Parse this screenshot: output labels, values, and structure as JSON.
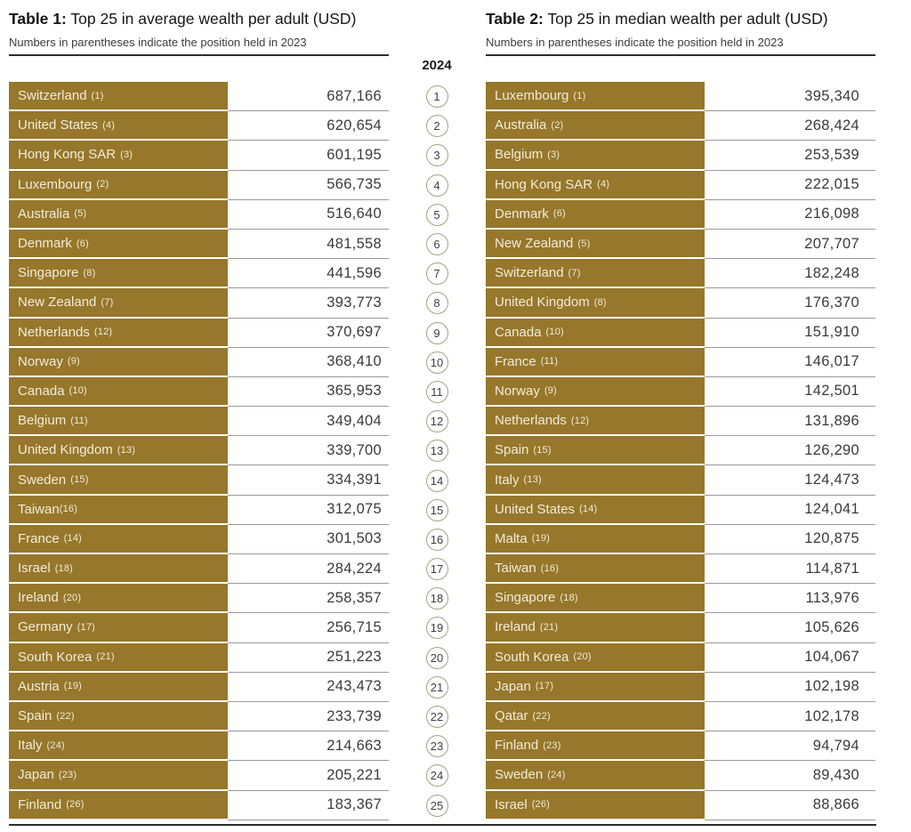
{
  "year_header": "2024",
  "colors": {
    "bar_gold": "#96772b",
    "bar_text": "#f2ecd9",
    "value_text": "#3a3a3a",
    "row_separator": "#9a9a9a",
    "rule_dark": "#2e2e2e",
    "circle_border": "#a9a080"
  },
  "table1": {
    "title_bold": "Table 1:",
    "title_rest": " Top 25 in average wealth per adult (USD)",
    "subtitle": "Numbers in parentheses indicate the position held in 2023",
    "rows": [
      {
        "rank": 1,
        "country": "Switzerland",
        "prev": "(1)",
        "value": "687,166"
      },
      {
        "rank": 2,
        "country": "United States",
        "prev": "(4)",
        "value": "620,654"
      },
      {
        "rank": 3,
        "country": "Hong Kong SAR",
        "prev": "(3)",
        "value": "601,195"
      },
      {
        "rank": 4,
        "country": "Luxembourg",
        "prev": "(2)",
        "value": "566,735"
      },
      {
        "rank": 5,
        "country": "Australia",
        "prev": "(5)",
        "value": "516,640"
      },
      {
        "rank": 6,
        "country": "Denmark",
        "prev": "(6)",
        "value": "481,558"
      },
      {
        "rank": 7,
        "country": "Singapore",
        "prev": "(8)",
        "value": "441,596"
      },
      {
        "rank": 8,
        "country": "New Zealand",
        "prev": "(7)",
        "value": "393,773"
      },
      {
        "rank": 9,
        "country": "Netherlands",
        "prev": "(12)",
        "value": "370,697"
      },
      {
        "rank": 10,
        "country": "Norway",
        "prev": "(9)",
        "value": "368,410"
      },
      {
        "rank": 11,
        "country": "Canada",
        "prev": "(10)",
        "value": "365,953"
      },
      {
        "rank": 12,
        "country": "Belgium",
        "prev": "(11)",
        "value": "349,404"
      },
      {
        "rank": 13,
        "country": "United Kingdom",
        "prev": "(13)",
        "value": "339,700"
      },
      {
        "rank": 14,
        "country": "Sweden",
        "prev": "(15)",
        "value": "334,391"
      },
      {
        "rank": 15,
        "country": "Taiwan",
        "prev": "(16)",
        "value": "312,075",
        "nospace": true
      },
      {
        "rank": 16,
        "country": "France",
        "prev": "(14)",
        "value": "301,503"
      },
      {
        "rank": 17,
        "country": "Israel",
        "prev": "(18)",
        "value": "284,224"
      },
      {
        "rank": 18,
        "country": "Ireland",
        "prev": "(20)",
        "value": "258,357"
      },
      {
        "rank": 19,
        "country": "Germany",
        "prev": "(17)",
        "value": "256,715"
      },
      {
        "rank": 20,
        "country": "South Korea",
        "prev": "(21)",
        "value": "251,223"
      },
      {
        "rank": 21,
        "country": "Austria",
        "prev": "(19)",
        "value": "243,473"
      },
      {
        "rank": 22,
        "country": "Spain",
        "prev": "(22)",
        "value": "233,739"
      },
      {
        "rank": 23,
        "country": "Italy",
        "prev": "(24)",
        "value": "214,663"
      },
      {
        "rank": 24,
        "country": "Japan",
        "prev": "(23)",
        "value": "205,221"
      },
      {
        "rank": 25,
        "country": "Finland",
        "prev": "(26)",
        "value": "183,367"
      }
    ]
  },
  "table2": {
    "title_bold": "Table 2:",
    "title_rest": " Top 25 in median wealth per adult (USD)",
    "subtitle": "Numbers in parentheses indicate the position held in 2023",
    "rows": [
      {
        "rank": 1,
        "country": "Luxembourg",
        "prev": "(1)",
        "value": "395,340"
      },
      {
        "rank": 2,
        "country": "Australia",
        "prev": "(2)",
        "value": "268,424"
      },
      {
        "rank": 3,
        "country": "Belgium",
        "prev": "(3)",
        "value": "253,539"
      },
      {
        "rank": 4,
        "country": "Hong Kong SAR",
        "prev": "(4)",
        "value": "222,015"
      },
      {
        "rank": 5,
        "country": "Denmark",
        "prev": "(6)",
        "value": "216,098"
      },
      {
        "rank": 6,
        "country": "New Zealand",
        "prev": "(5)",
        "value": "207,707"
      },
      {
        "rank": 7,
        "country": "Switzerland",
        "prev": "(7)",
        "value": "182,248"
      },
      {
        "rank": 8,
        "country": "United Kingdom",
        "prev": "(8)",
        "value": "176,370"
      },
      {
        "rank": 9,
        "country": "Canada",
        "prev": "(10)",
        "value": "151,910"
      },
      {
        "rank": 10,
        "country": "France",
        "prev": "(11)",
        "value": "146,017"
      },
      {
        "rank": 11,
        "country": "Norway",
        "prev": "(9)",
        "value": "142,501"
      },
      {
        "rank": 12,
        "country": "Netherlands",
        "prev": "(12)",
        "value": "131,896"
      },
      {
        "rank": 13,
        "country": "Spain",
        "prev": "(15)",
        "value": "126,290"
      },
      {
        "rank": 14,
        "country": "Italy",
        "prev": "(13)",
        "value": "124,473"
      },
      {
        "rank": 15,
        "country": "United States",
        "prev": "(14)",
        "value": "124,041"
      },
      {
        "rank": 16,
        "country": "Malta",
        "prev": "(19)",
        "value": "120,875"
      },
      {
        "rank": 17,
        "country": "Taiwan",
        "prev": "(16)",
        "value": "114,871"
      },
      {
        "rank": 18,
        "country": "Singapore",
        "prev": "(18)",
        "value": "113,976"
      },
      {
        "rank": 19,
        "country": "Ireland",
        "prev": "(21)",
        "value": "105,626"
      },
      {
        "rank": 20,
        "country": "South Korea",
        "prev": "(20)",
        "value": "104,067"
      },
      {
        "rank": 21,
        "country": "Japan",
        "prev": "(17)",
        "value": "102,198"
      },
      {
        "rank": 22,
        "country": "Qatar",
        "prev": "(22)",
        "value": "102,178"
      },
      {
        "rank": 23,
        "country": "Finland",
        "prev": "(23)",
        "value": "94,794"
      },
      {
        "rank": 24,
        "country": "Sweden",
        "prev": "(24)",
        "value": "89,430"
      },
      {
        "rank": 25,
        "country": "Israel",
        "prev": "(26)",
        "value": "88,866"
      }
    ]
  }
}
